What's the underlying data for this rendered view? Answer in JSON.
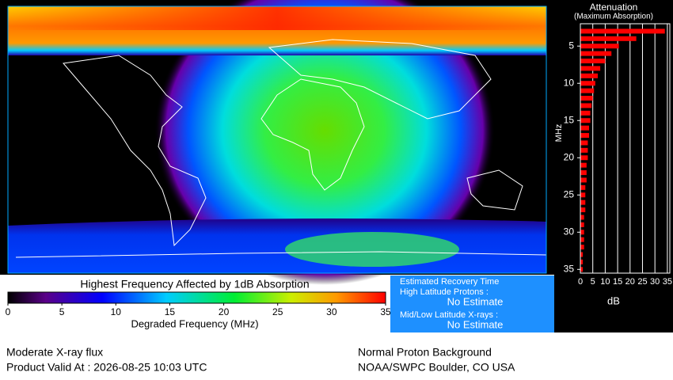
{
  "colorbar": {
    "title": "Highest Frequency Affected by 1dB Absorption",
    "label": "Degraded Frequency (MHz)",
    "lim": [
      0,
      35
    ],
    "ticks": [
      0,
      5,
      10,
      15,
      20,
      25,
      30,
      35
    ]
  },
  "chart_data": {
    "type": "bar",
    "orientation": "horizontal",
    "title": "Attenuation",
    "subtitle": "(Maximum Absorption)",
    "xlabel": "dB",
    "ylabel": "MHz",
    "y": [
      3,
      4,
      5,
      6,
      7,
      8,
      9,
      10,
      11,
      12,
      13,
      14,
      15,
      16,
      17,
      18,
      19,
      20,
      21,
      22,
      23,
      24,
      25,
      26,
      27,
      28,
      29,
      30,
      31,
      32,
      33,
      34,
      35
    ],
    "values": [
      34,
      22.5,
      15.5,
      12.5,
      10,
      8,
      7,
      6,
      5.5,
      5,
      4.5,
      4,
      4,
      3.5,
      3.5,
      3,
      3,
      3,
      2.5,
      2.5,
      2.5,
      2,
      2,
      2,
      2,
      1.5,
      1.5,
      1.5,
      1.5,
      1.5,
      1,
      1,
      1
    ],
    "color": "#ff0000",
    "xlim": [
      0,
      36
    ],
    "xticks": [
      0,
      5,
      10,
      15,
      20,
      25,
      30,
      35
    ],
    "ylim": [
      2,
      35.5
    ],
    "yticks": [
      5,
      10,
      15,
      20,
      25,
      30,
      35
    ],
    "grid": true
  },
  "info": {
    "title": "Estimated Recovery Time",
    "protons_label": "High Latitude Protons :",
    "protons_value": "No Estimate",
    "xrays_label": "Mid/Low Latitude X-rays :",
    "xrays_value": "No Estimate"
  },
  "footer": {
    "flux": "Moderate X-ray flux",
    "valid": "Product Valid At : 2026-08-25 10:03 UTC",
    "proton": "Normal Proton Background",
    "source": "NOAA/SWPC Boulder, CO USA"
  }
}
